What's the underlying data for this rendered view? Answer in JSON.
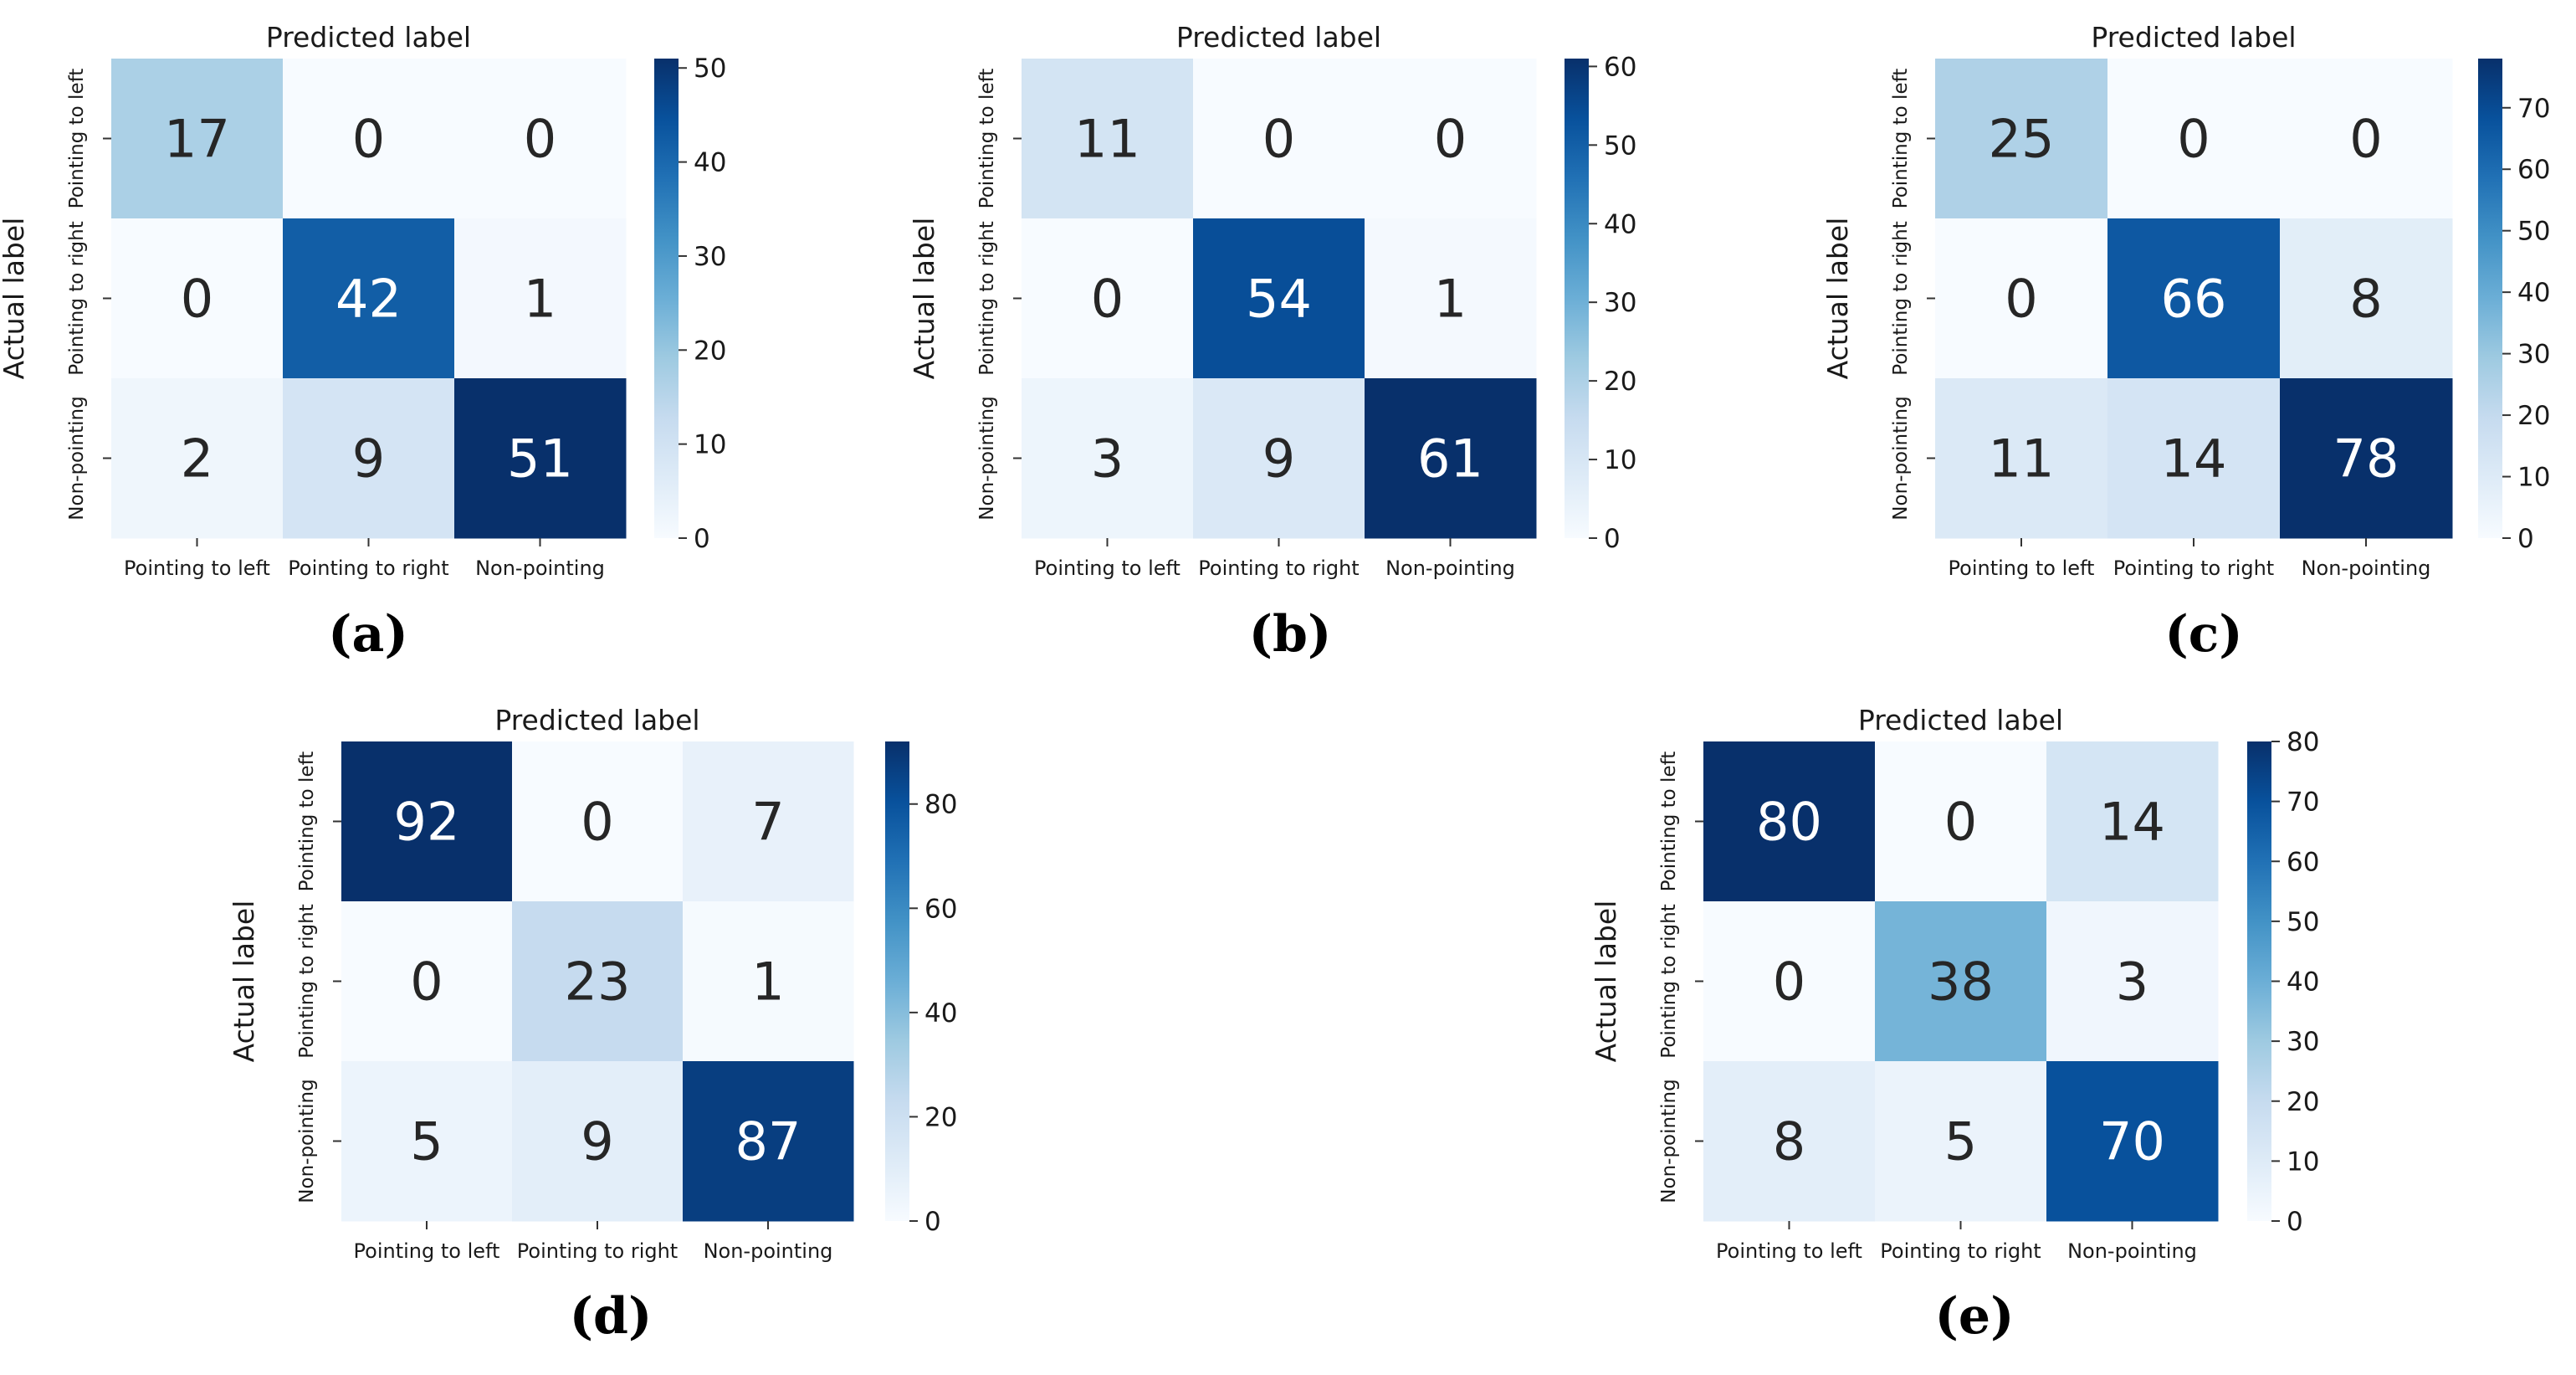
{
  "figure": {
    "colorscale": [
      "#f7fbff",
      "#deebf7",
      "#c6dbef",
      "#9ecae1",
      "#6baed6",
      "#4292c6",
      "#2171b5",
      "#08519c",
      "#08306b"
    ]
  },
  "chart_data": [
    {
      "type": "heatmap",
      "panel_label": "(a)",
      "title": "Predicted label",
      "xlabel": "Predicted label",
      "ylabel": "Actual label",
      "x_categories": [
        "Pointing to left",
        "Pointing to right",
        "Non-pointing"
      ],
      "y_categories": [
        "Pointing to left",
        "Pointing to right",
        "Non-pointing"
      ],
      "values": [
        [
          17,
          0,
          0
        ],
        [
          0,
          42,
          1
        ],
        [
          2,
          9,
          51
        ]
      ],
      "colorbar": {
        "min": 0,
        "max": 51,
        "ticks": [
          0,
          10,
          20,
          30,
          40,
          50
        ]
      }
    },
    {
      "type": "heatmap",
      "panel_label": "(b)",
      "title": "Predicted label",
      "xlabel": "Predicted label",
      "ylabel": "Actual label",
      "x_categories": [
        "Pointing to left",
        "Pointing to right",
        "Non-pointing"
      ],
      "y_categories": [
        "Pointing to left",
        "Pointing to right",
        "Non-pointing"
      ],
      "values": [
        [
          11,
          0,
          0
        ],
        [
          0,
          54,
          1
        ],
        [
          3,
          9,
          61
        ]
      ],
      "colorbar": {
        "min": 0,
        "max": 61,
        "ticks": [
          0,
          10,
          20,
          30,
          40,
          50,
          60
        ]
      }
    },
    {
      "type": "heatmap",
      "panel_label": "(c)",
      "title": "Predicted label",
      "xlabel": "Predicted label",
      "ylabel": "Actual label",
      "x_categories": [
        "Pointing to left",
        "Pointing to right",
        "Non-pointing"
      ],
      "y_categories": [
        "Pointing to left",
        "Pointing to right",
        "Non-pointing"
      ],
      "values": [
        [
          25,
          0,
          0
        ],
        [
          0,
          66,
          8
        ],
        [
          11,
          14,
          78
        ]
      ],
      "colorbar": {
        "min": 0,
        "max": 78,
        "ticks": [
          0,
          10,
          20,
          30,
          40,
          50,
          60,
          70
        ]
      }
    },
    {
      "type": "heatmap",
      "panel_label": "(d)",
      "title": "Predicted label",
      "xlabel": "Predicted label",
      "ylabel": "Actual label",
      "x_categories": [
        "Pointing to left",
        "Pointing to right",
        "Non-pointing"
      ],
      "y_categories": [
        "Pointing to left",
        "Pointing to right",
        "Non-pointing"
      ],
      "values": [
        [
          92,
          0,
          7
        ],
        [
          0,
          23,
          1
        ],
        [
          5,
          9,
          87
        ]
      ],
      "colorbar": {
        "min": 0,
        "max": 92,
        "ticks": [
          0,
          20,
          40,
          60,
          80
        ]
      }
    },
    {
      "type": "heatmap",
      "panel_label": "(e)",
      "title": "Predicted label",
      "xlabel": "Predicted label",
      "ylabel": "Actual label",
      "x_categories": [
        "Pointing to left",
        "Pointing to right",
        "Non-pointing"
      ],
      "y_categories": [
        "Pointing to left",
        "Pointing to right",
        "Non-pointing"
      ],
      "values": [
        [
          80,
          0,
          14
        ],
        [
          0,
          38,
          3
        ],
        [
          8,
          5,
          70
        ]
      ],
      "colorbar": {
        "min": 0,
        "max": 80,
        "ticks": [
          0,
          10,
          20,
          30,
          40,
          50,
          60,
          70,
          80
        ]
      }
    }
  ]
}
